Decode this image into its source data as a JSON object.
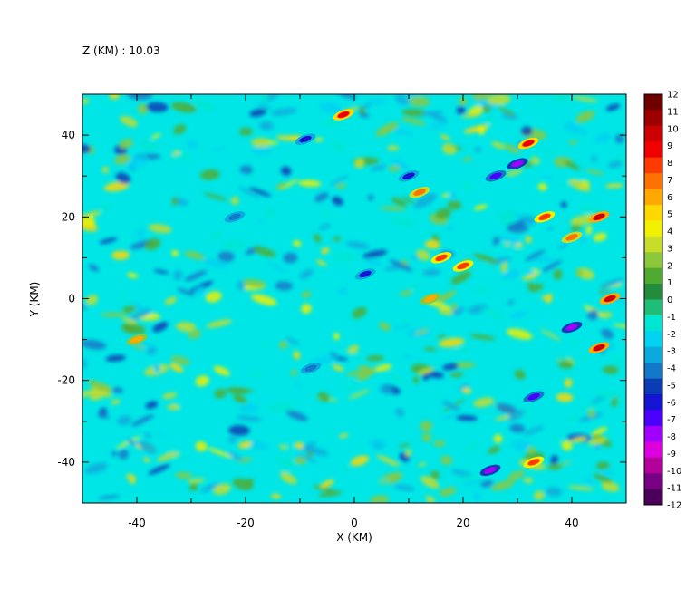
{
  "chart_data": {
    "type": "heatmap",
    "title": "Z (KM) : 10.03",
    "xlabel": "X (KM)",
    "ylabel": "Y (KM)",
    "xlim": [
      -50,
      50
    ],
    "ylim": [
      -50,
      50
    ],
    "x_ticks": [
      -40,
      -20,
      0,
      20,
      40
    ],
    "y_ticks": [
      -40,
      -20,
      0,
      20,
      40
    ],
    "x_tick_labels": [
      "-40",
      "-20",
      "0",
      "20",
      "40"
    ],
    "y_tick_labels": [
      "-40",
      "-20",
      "0",
      "20",
      "40"
    ],
    "colorbar": {
      "min": -12,
      "max": 12,
      "tick_labels": [
        "12",
        "11",
        "10",
        "9",
        "8",
        "7",
        "6",
        "5",
        "4",
        "3",
        "2",
        "1",
        "0",
        "-1",
        "-2",
        "-3",
        "-4",
        "-5",
        "-6",
        "-7",
        "-8",
        "-9",
        "-10",
        "-11",
        "-12"
      ],
      "colors": [
        "#6e0000",
        "#9c0000",
        "#cc0000",
        "#f00000",
        "#ff3a00",
        "#ff7200",
        "#ffa800",
        "#ffd800",
        "#f0f000",
        "#c8dc2a",
        "#8cc83c",
        "#50aa32",
        "#238c3c",
        "#1ebe78",
        "#00e6d2",
        "#00d2f0",
        "#0aaadc",
        "#1478c8",
        "#0a3cb4",
        "#1414d2",
        "#4b00ff",
        "#a000ff",
        "#dc00dc",
        "#b4009b",
        "#780082",
        "#4b005a"
      ]
    },
    "features": [
      {
        "x": 45,
        "y": 20,
        "value": 10
      },
      {
        "x": 47,
        "y": 0,
        "value": 10
      },
      {
        "x": 45,
        "y": -12,
        "value": 10
      },
      {
        "x": 32,
        "y": 38,
        "value": 9
      },
      {
        "x": -2,
        "y": 45,
        "value": 9
      },
      {
        "x": 16,
        "y": 10,
        "value": 8
      },
      {
        "x": 20,
        "y": 8,
        "value": 8
      },
      {
        "x": 12,
        "y": 26,
        "value": 7
      },
      {
        "x": 35,
        "y": 20,
        "value": 8
      },
      {
        "x": 40,
        "y": 15,
        "value": 7
      },
      {
        "x": 33,
        "y": -40,
        "value": 8
      },
      {
        "x": -40,
        "y": -10,
        "value": 6
      },
      {
        "x": 14,
        "y": 0,
        "value": 6
      },
      {
        "x": 30,
        "y": 33,
        "value": -8
      },
      {
        "x": 40,
        "y": -7,
        "value": -8
      },
      {
        "x": -9,
        "y": 39,
        "value": -6
      },
      {
        "x": 25,
        "y": -42,
        "value": -8
      },
      {
        "x": 33,
        "y": -24,
        "value": -7
      },
      {
        "x": 2,
        "y": 6,
        "value": -6
      },
      {
        "x": 10,
        "y": 30,
        "value": -6
      },
      {
        "x": -22,
        "y": 20,
        "value": -4
      },
      {
        "x": -8,
        "y": -17,
        "value": -4
      },
      {
        "x": 26,
        "y": 30,
        "value": -7
      }
    ]
  }
}
